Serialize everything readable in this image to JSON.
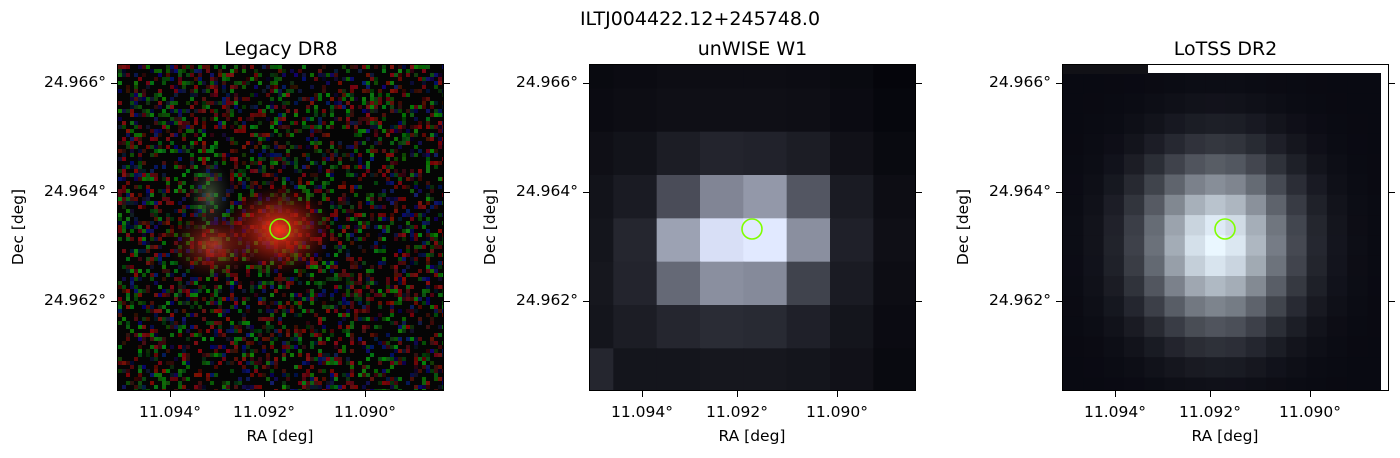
{
  "figure": {
    "suptitle": "ILTJ004422.12+245748.0",
    "panels": [
      {
        "title": "Legacy DR8"
      },
      {
        "title": "unWISE W1"
      },
      {
        "title": "LoTSS DR2"
      }
    ],
    "xlabel": "RA [deg]",
    "ylabel": "Dec [deg]",
    "xticks": [
      "11.094°",
      "11.092°",
      "11.090°"
    ],
    "yticks": [
      "24.966°",
      "24.964°",
      "24.962°"
    ],
    "marker_color": "#7fff00"
  }
}
